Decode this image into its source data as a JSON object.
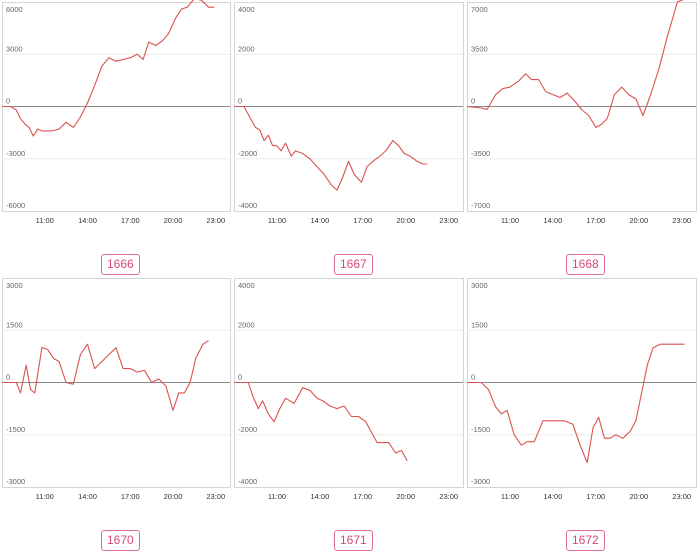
{
  "page": {
    "background": "#ffffff",
    "line_color": "#d9534f",
    "badge_color": "#e06a9c"
  },
  "chart_data": [
    {
      "type": "line",
      "label": "1666",
      "yticks": [
        6000,
        3000,
        0,
        -3000,
        -6000
      ],
      "ylim": [
        -6000,
        6000
      ],
      "xticks": [
        "11:00",
        "14:00",
        "17:00",
        "20:00",
        "23:00"
      ],
      "xticks_hours": [
        11,
        14,
        17,
        20,
        23
      ],
      "xlim_hours": [
        8,
        24
      ],
      "grid": true,
      "series": [
        {
          "x": [
            8.0,
            8.6,
            9.0,
            9.3,
            9.6,
            9.9,
            10.2,
            10.5,
            10.8,
            11.1,
            11.5,
            12.0,
            12.5,
            13.0,
            13.5,
            14.0,
            14.5,
            15.0,
            15.5,
            16.0,
            16.5,
            17.0,
            17.5,
            17.9,
            18.3,
            18.8,
            19.3,
            19.7,
            20.2,
            20.6,
            21.0,
            21.5,
            22.0,
            22.5,
            22.9
          ],
          "y": [
            0,
            0,
            -200,
            -700,
            -1000,
            -1200,
            -1700,
            -1300,
            -1400,
            -1400,
            -1400,
            -1300,
            -900,
            -1200,
            -600,
            200,
            1200,
            2300,
            2800,
            2600,
            2700,
            2800,
            3000,
            2700,
            3700,
            3500,
            3800,
            4200,
            5100,
            5600,
            5700,
            6200,
            6100,
            5700,
            5700
          ]
        }
      ]
    },
    {
      "type": "line",
      "label": "1667",
      "yticks": [
        4000,
        2000,
        0,
        -2000,
        -4000
      ],
      "ylim": [
        -4000,
        4000
      ],
      "xticks": [
        "11:00",
        "14:00",
        "17:00",
        "20:00",
        "23:00"
      ],
      "xticks_hours": [
        11,
        14,
        17,
        20,
        23
      ],
      "xlim_hours": [
        8,
        24
      ],
      "grid": true,
      "series": [
        {
          "x": [
            8.0,
            8.7,
            9.1,
            9.5,
            9.8,
            10.1,
            10.4,
            10.7,
            11.0,
            11.3,
            11.6,
            12.0,
            12.3,
            12.8,
            13.3,
            13.8,
            14.3,
            14.8,
            15.2,
            15.6,
            16.0,
            16.4,
            16.9,
            17.3,
            17.7,
            18.2,
            18.6,
            19.1,
            19.5,
            19.9,
            20.3,
            20.8,
            21.2,
            21.5
          ],
          "y": [
            0,
            0,
            -400,
            -800,
            -900,
            -1300,
            -1100,
            -1500,
            -1500,
            -1700,
            -1400,
            -1900,
            -1700,
            -1800,
            -2000,
            -2300,
            -2600,
            -3000,
            -3200,
            -2700,
            -2100,
            -2600,
            -2900,
            -2300,
            -2100,
            -1900,
            -1700,
            -1300,
            -1500,
            -1800,
            -1900,
            -2100,
            -2200,
            -2200
          ]
        }
      ]
    },
    {
      "type": "line",
      "label": "1668",
      "yticks": [
        7000,
        3500,
        0,
        -3500,
        -7000
      ],
      "ylim": [
        -7000,
        7000
      ],
      "xticks": [
        "11:00",
        "14:00",
        "17:00",
        "20:00",
        "23:00"
      ],
      "xticks_hours": [
        11,
        14,
        17,
        20,
        23
      ],
      "xlim_hours": [
        8,
        24
      ],
      "grid": true,
      "series": [
        {
          "x": [
            8.0,
            9.0,
            9.4,
            10.0,
            10.5,
            11.0,
            11.6,
            12.1,
            12.5,
            13.0,
            13.5,
            14.0,
            14.5,
            15.0,
            15.5,
            16.0,
            16.5,
            17.0,
            17.4,
            17.8,
            18.3,
            18.8,
            19.3,
            19.8,
            20.3,
            20.8,
            21.4,
            22.0,
            22.7,
            23.2
          ],
          "y": [
            0,
            -100,
            -200,
            800,
            1200,
            1300,
            1700,
            2200,
            1800,
            1800,
            1000,
            800,
            600,
            900,
            400,
            -200,
            -600,
            -1400,
            -1200,
            -800,
            800,
            1300,
            800,
            500,
            -600,
            700,
            2500,
            4700,
            7000,
            7200
          ]
        }
      ]
    },
    {
      "type": "line",
      "label": "1670",
      "yticks": [
        3000,
        1500,
        0,
        -1500,
        -3000
      ],
      "ylim": [
        -3000,
        3000
      ],
      "xticks": [
        "11:00",
        "14:00",
        "17:00",
        "20:00",
        "23:00"
      ],
      "xticks_hours": [
        11,
        14,
        17,
        20,
        23
      ],
      "xlim_hours": [
        8,
        24
      ],
      "grid": true,
      "series": [
        {
          "x": [
            8.0,
            9.0,
            9.3,
            9.7,
            10.0,
            10.3,
            10.8,
            11.2,
            11.6,
            12.0,
            12.5,
            13.0,
            13.5,
            14.0,
            14.5,
            15.0,
            15.5,
            16.0,
            16.5,
            17.0,
            17.5,
            18.0,
            18.5,
            19.0,
            19.5,
            20.0,
            20.4,
            20.8,
            21.2,
            21.6,
            22.1,
            22.5
          ],
          "y": [
            0,
            0,
            -300,
            500,
            -200,
            -300,
            1000,
            950,
            700,
            600,
            0,
            -50,
            800,
            1100,
            400,
            600,
            800,
            1000,
            400,
            400,
            300,
            350,
            0,
            100,
            -100,
            -800,
            -300,
            -300,
            0,
            700,
            1100,
            1200
          ]
        }
      ]
    },
    {
      "type": "line",
      "label": "1671",
      "yticks": [
        4000,
        2000,
        0,
        -2000,
        -4000
      ],
      "ylim": [
        -4000,
        4000
      ],
      "xticks": [
        "11:00",
        "14:00",
        "17:00",
        "20:00",
        "23:00"
      ],
      "xticks_hours": [
        11,
        14,
        17,
        20,
        23
      ],
      "xlim_hours": [
        8,
        24
      ],
      "grid": true,
      "series": [
        {
          "x": [
            8.0,
            9.0,
            9.3,
            9.7,
            10.0,
            10.4,
            10.8,
            11.2,
            11.6,
            12.2,
            12.8,
            13.3,
            13.8,
            14.2,
            14.7,
            15.2,
            15.7,
            16.2,
            16.7,
            17.2,
            17.6,
            18.0,
            18.4,
            18.8,
            19.3,
            19.7,
            20.1
          ],
          "y": [
            0,
            0,
            -500,
            -1000,
            -700,
            -1200,
            -1500,
            -1000,
            -600,
            -800,
            -200,
            -300,
            -600,
            -700,
            -900,
            -1000,
            -900,
            -1300,
            -1300,
            -1500,
            -1900,
            -2300,
            -2300,
            -2300,
            -2700,
            -2600,
            -3000
          ]
        }
      ]
    },
    {
      "type": "line",
      "label": "1672",
      "yticks": [
        3000,
        1500,
        0,
        -1500,
        -3000
      ],
      "ylim": [
        -3000,
        3000
      ],
      "xticks": [
        "11:00",
        "14:00",
        "17:00",
        "20:00",
        "23:00"
      ],
      "xticks_hours": [
        11,
        14,
        17,
        20,
        23
      ],
      "xlim_hours": [
        8,
        24
      ],
      "grid": true,
      "series": [
        {
          "x": [
            8.0,
            9.0,
            9.5,
            10.0,
            10.4,
            10.8,
            11.3,
            11.8,
            12.2,
            12.7,
            13.3,
            13.8,
            14.3,
            14.8,
            15.4,
            15.9,
            16.4,
            16.8,
            17.2,
            17.6,
            18.0,
            18.4,
            18.9,
            19.4,
            19.8,
            20.2,
            20.6,
            21.0,
            21.5,
            22.0,
            23.2
          ],
          "y": [
            0,
            0,
            -200,
            -700,
            -900,
            -800,
            -1500,
            -1800,
            -1700,
            -1700,
            -1100,
            -1100,
            -1100,
            -1100,
            -1200,
            -1800,
            -2300,
            -1300,
            -1000,
            -1600,
            -1600,
            -1500,
            -1600,
            -1400,
            -1100,
            -300,
            500,
            1000,
            1100,
            1100,
            1100
          ]
        }
      ]
    }
  ]
}
